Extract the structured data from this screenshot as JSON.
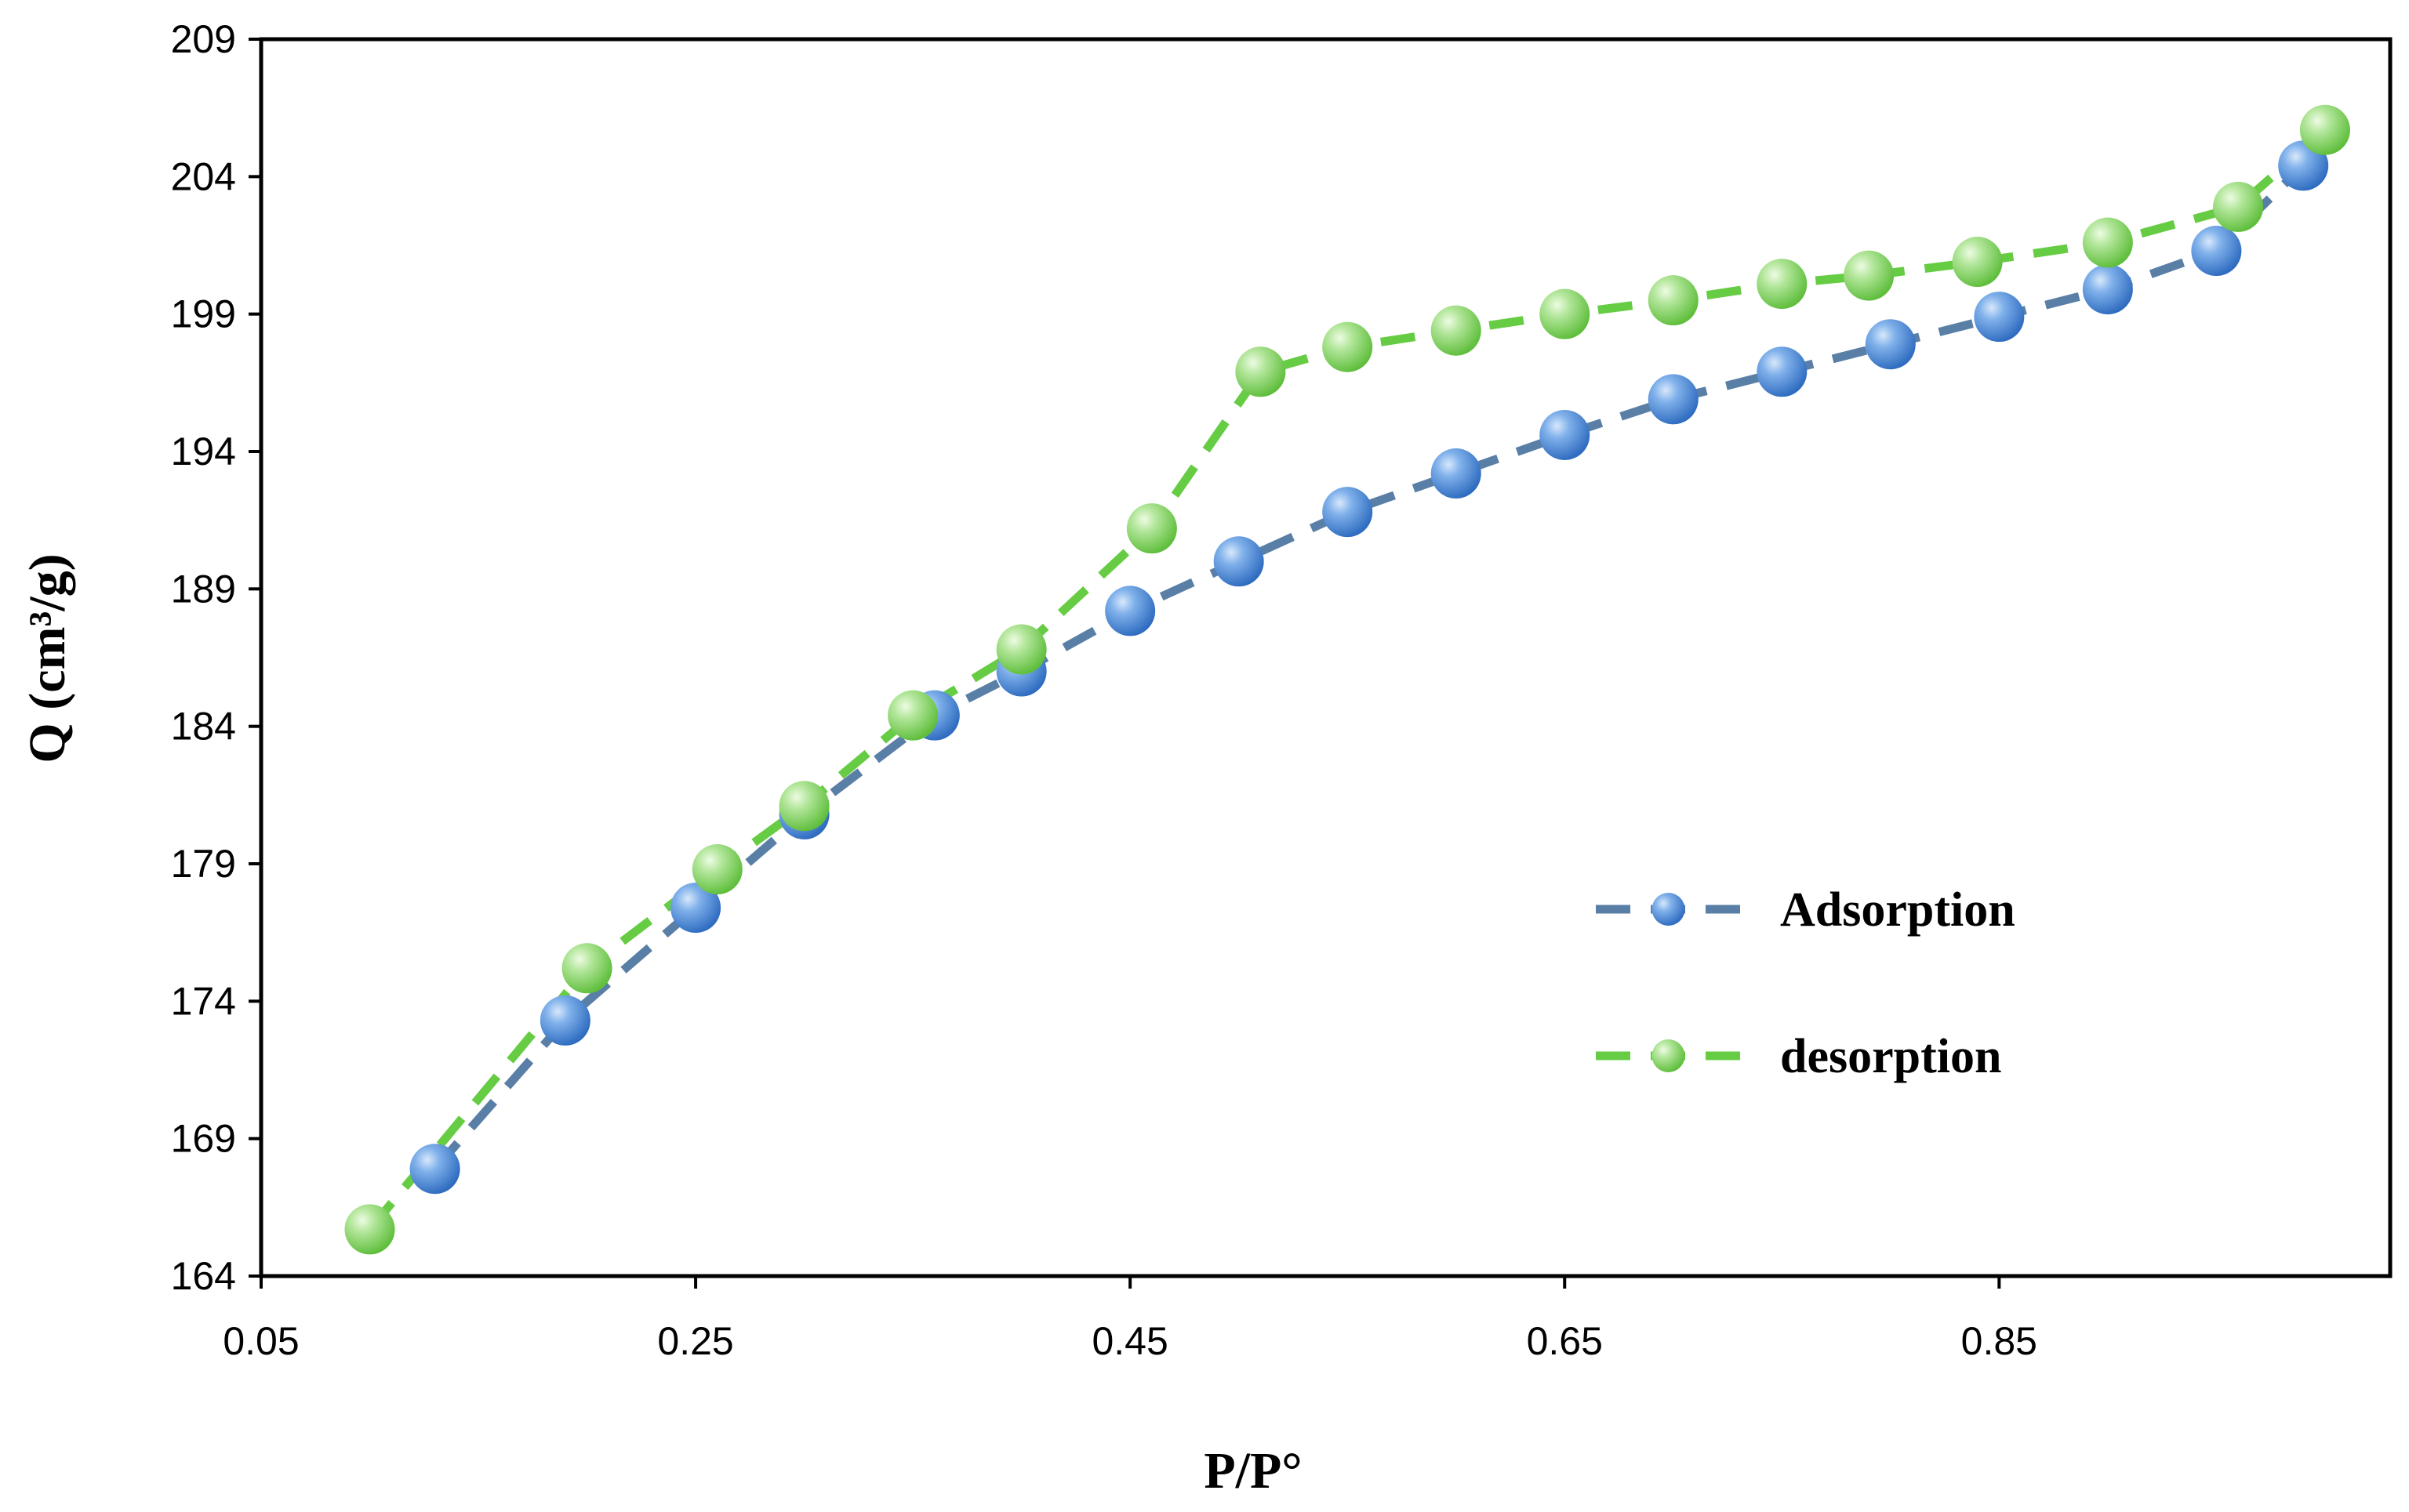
{
  "chart_data": {
    "type": "line",
    "title": "",
    "xlabel": "P/P°",
    "ylabel": "Q (cm³/g)",
    "xlim": [
      0.05,
      1.03
    ],
    "ylim": [
      164,
      209
    ],
    "x_ticks": [
      0.05,
      0.25,
      0.45,
      0.65,
      0.85
    ],
    "x_tick_labels": [
      "0.05",
      "0.25",
      "0.45",
      "0.65",
      "0.85"
    ],
    "y_ticks": [
      164,
      169,
      174,
      179,
      184,
      189,
      194,
      199,
      204,
      209
    ],
    "y_tick_labels": [
      "164",
      "169",
      "174",
      "179",
      "184",
      "189",
      "194",
      "199",
      "204",
      "209"
    ],
    "grid": false,
    "legend": "right",
    "series": [
      {
        "name": "Adsorption",
        "color": "#4a7db5",
        "line_color": "#5a7fa6",
        "marker": "circle",
        "line_style": "dashed",
        "x": [
          0.13,
          0.19,
          0.25,
          0.3,
          0.36,
          0.4,
          0.45,
          0.5,
          0.55,
          0.6,
          0.65,
          0.7,
          0.75,
          0.8,
          0.85,
          0.9,
          0.95,
          0.99
        ],
        "y": [
          167.9,
          173.3,
          177.4,
          180.8,
          184.4,
          186.0,
          188.2,
          190.0,
          191.8,
          193.2,
          194.6,
          195.9,
          196.9,
          197.9,
          198.9,
          199.9,
          201.3,
          204.4
        ]
      },
      {
        "name": "desorption",
        "color": "#74c95c",
        "line_color": "#66cc44",
        "marker": "circle",
        "line_style": "dashed",
        "x": [
          0.1,
          0.2,
          0.26,
          0.3,
          0.35,
          0.4,
          0.46,
          0.51,
          0.55,
          0.6,
          0.65,
          0.7,
          0.75,
          0.79,
          0.84,
          0.9,
          0.96,
          1.0
        ],
        "y": [
          165.7,
          175.2,
          178.8,
          181.1,
          184.4,
          186.8,
          191.2,
          196.9,
          197.8,
          198.4,
          199.0,
          199.5,
          200.1,
          200.4,
          200.9,
          201.6,
          202.9,
          205.7
        ]
      }
    ]
  }
}
